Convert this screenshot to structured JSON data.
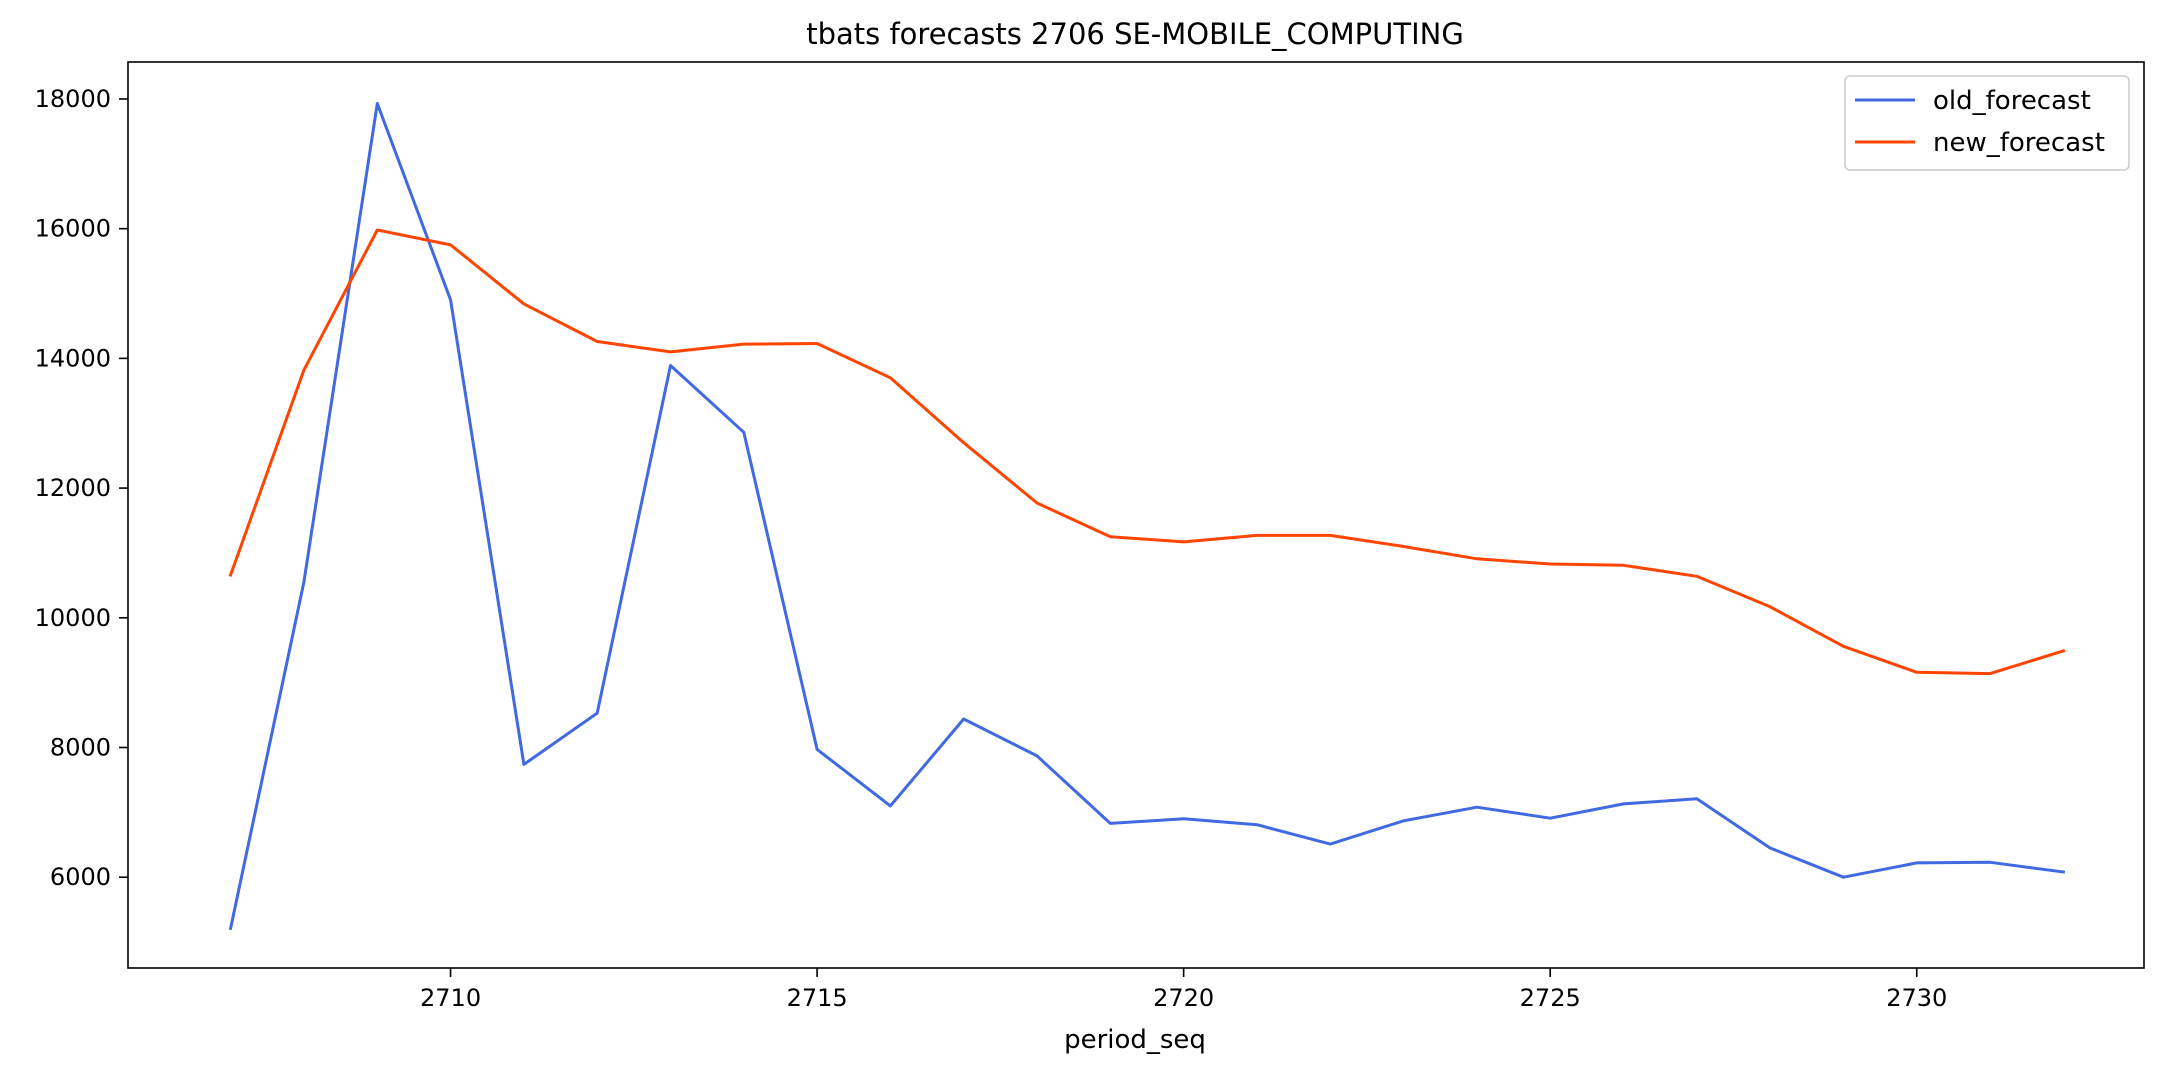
{
  "chart_data": {
    "type": "line",
    "title": "tbats forecasts 2706 SE-MOBILE_COMPUTING",
    "xlabel": "period_seq",
    "ylabel": "",
    "x": [
      2707,
      2708,
      2709,
      2710,
      2711,
      2712,
      2713,
      2714,
      2715,
      2716,
      2717,
      2718,
      2719,
      2720,
      2721,
      2722,
      2723,
      2724,
      2725,
      2726,
      2727,
      2728,
      2729,
      2730,
      2731,
      2732
    ],
    "xlim": [
      2705.6,
      2733.1
    ],
    "ylim": [
      4600,
      18570
    ],
    "xticks": [
      2710,
      2715,
      2720,
      2725,
      2730
    ],
    "yticks": [
      6000,
      8000,
      10000,
      12000,
      14000,
      16000,
      18000
    ],
    "grid": false,
    "legend_position": "top-right",
    "series": [
      {
        "name": "old_forecast",
        "color": "#4169e1",
        "values": [
          5210,
          10550,
          17930,
          14900,
          7740,
          8530,
          13890,
          12860,
          7970,
          7100,
          8440,
          7870,
          6830,
          6900,
          6810,
          6510,
          6870,
          7080,
          6910,
          7130,
          7210,
          6450,
          6000,
          6220,
          6230,
          6080
        ]
      },
      {
        "name": "new_forecast",
        "color": "#ff4500",
        "values": [
          10660,
          13820,
          15980,
          15750,
          14840,
          14260,
          14100,
          14220,
          14230,
          13700,
          12700,
          11770,
          11250,
          11170,
          11270,
          11270,
          11100,
          10910,
          10830,
          10810,
          10640,
          10170,
          9560,
          9160,
          9140,
          9490
        ]
      }
    ]
  }
}
